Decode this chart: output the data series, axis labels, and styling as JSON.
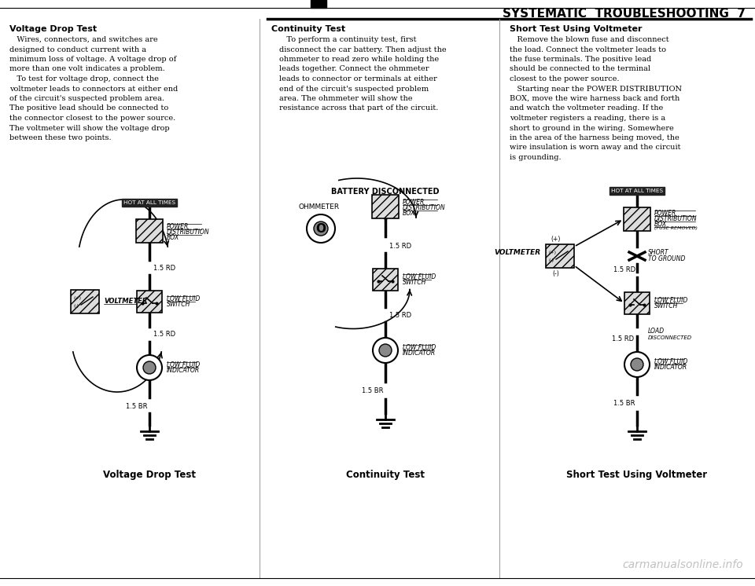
{
  "title": "SYSTEMATIC  TROUBLESHOOTING  7",
  "background_color": "#ffffff",
  "watermark": "carmanualsonline.info",
  "col1_heading": "Voltage Drop Test",
  "col1_body": "   Wires, connectors, and switches are\ndesigned to conduct current with a\nminimum loss of voltage. A voltage drop of\nmore than one volt indicates a problem.\n   To test for voltage drop, connect the\nvoltmeter leads to connectors at either end\nof the circuit's suspected problem area.\nThe positive lead should be connected to\nthe connector closest to the power source.\nThe voltmeter will show the voltage drop\nbetween these two points.",
  "col1_diag_label": "Voltage Drop Test",
  "col2_heading": "Continuity Test",
  "col2_body": "   To perform a continuity test, first\ndisconnect the car battery. Then adjust the\nohmmeter to read zero while holding the\nleads together. Connect the ohmmeter\nleads to connector or terminals at either\nend of the circuit's suspected problem\narea. The ohmmeter will show the\nresistance across that part of the circuit.",
  "col2_diag_label": "Continuity Test",
  "col3_heading": "Short Test Using Voltmeter",
  "col3_body": "   Remove the blown fuse and disconnect\nthe load. Connect the voltmeter leads to\nthe fuse terminals. The positive lead\nshould be connected to the terminal\nclosest to the power source.\n   Starting near the POWER DISTRIBUTION\nBOX, move the wire harness back and forth\nand watch the voltmeter reading. If the\nvoltmeter registers a reading, there is a\nshort to ground in the wiring. Somewhere\nin the area of the harness being moved, the\nwire insulation is worn away and the circuit\nis grounding.",
  "col3_diag_label": "Short Test Using Voltmeter"
}
